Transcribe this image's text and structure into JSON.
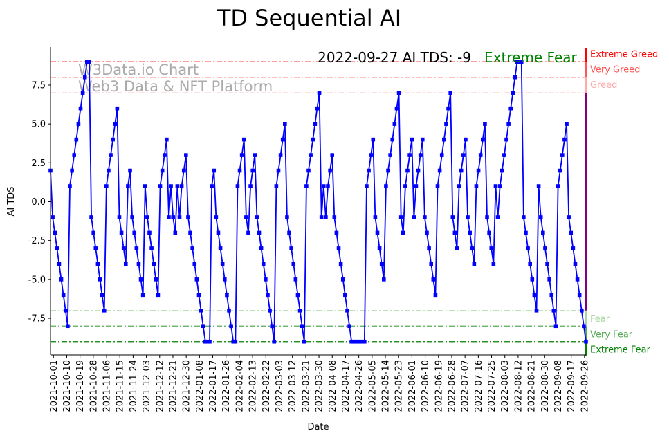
{
  "chart_data": {
    "type": "line",
    "title": "TD Sequential AI",
    "xlabel": "Date",
    "ylabel": "AI TDS",
    "x_start": "2021-09-29",
    "x_end": "2022-09-27",
    "ylim": [
      -9.9,
      9.9
    ],
    "yticks": [
      "-7.5",
      "-5.0",
      "-2.5",
      "0.0",
      "2.5",
      "5.0",
      "7.5"
    ],
    "ytick_values": [
      -7.5,
      -5,
      -2.5,
      0,
      2.5,
      5,
      7.5
    ],
    "xticks": [
      "2021-10-01",
      "2021-10-10",
      "2021-10-19",
      "2021-10-28",
      "2021-11-06",
      "2021-11-15",
      "2021-11-24",
      "2021-12-03",
      "2021-12-12",
      "2021-12-21",
      "2021-12-30",
      "2022-01-08",
      "2022-01-17",
      "2022-01-26",
      "2022-02-04",
      "2022-02-13",
      "2022-02-22",
      "2022-03-03",
      "2022-03-12",
      "2022-03-21",
      "2022-03-30",
      "2022-04-08",
      "2022-04-17",
      "2022-04-26",
      "2022-05-05",
      "2022-05-14",
      "2022-05-23",
      "2022-06-01",
      "2022-06-10",
      "2022-06-19",
      "2022-06-28",
      "2022-07-07",
      "2022-07-16",
      "2022-07-25",
      "2022-08-03",
      "2022-08-12",
      "2022-08-21",
      "2022-08-30",
      "2022-09-08",
      "2022-09-17",
      "2022-09-26"
    ],
    "series": [
      {
        "name": "AI TDS",
        "color": "#0000ff",
        "values": [
          2,
          -1,
          -2,
          -3,
          -4,
          -5,
          -6,
          -7,
          -8,
          1,
          2,
          3,
          4,
          5,
          6,
          7,
          8,
          9,
          9,
          -1,
          -2,
          -3,
          -4,
          -5,
          -6,
          -7,
          1,
          2,
          3,
          4,
          5,
          6,
          -1,
          -2,
          -3,
          -4,
          1,
          2,
          -1,
          -2,
          -3,
          -4,
          -5,
          -6,
          1,
          -1,
          -2,
          -3,
          -4,
          -5,
          -6,
          1,
          2,
          3,
          4,
          -1,
          1,
          -1,
          -2,
          1,
          -1,
          1,
          2,
          3,
          -1,
          -2,
          -3,
          -4,
          -5,
          -6,
          -7,
          -8,
          -9,
          -9,
          -9,
          1,
          2,
          -1,
          -2,
          -3,
          -4,
          -5,
          -6,
          -7,
          -8,
          -9,
          -9,
          1,
          2,
          3,
          4,
          -1,
          -2,
          1,
          2,
          3,
          -1,
          -2,
          -3,
          -4,
          -5,
          -6,
          -7,
          -8,
          -9,
          1,
          2,
          3,
          4,
          5,
          -1,
          -2,
          -3,
          -4,
          -5,
          -6,
          -7,
          -8,
          -9,
          1,
          2,
          3,
          4,
          5,
          6,
          7,
          -1,
          1,
          -1,
          1,
          2,
          3,
          -1,
          -2,
          -3,
          -4,
          -5,
          -6,
          -7,
          -8,
          -9,
          -9,
          -9,
          -9,
          -9,
          -9,
          -9,
          1,
          2,
          3,
          4,
          -1,
          -2,
          -3,
          -4,
          -5,
          1,
          2,
          3,
          4,
          5,
          6,
          7,
          -1,
          -2,
          1,
          2,
          3,
          4,
          -1,
          1,
          2,
          3,
          4,
          -1,
          -2,
          -3,
          -4,
          -5,
          -6,
          1,
          2,
          3,
          4,
          5,
          6,
          7,
          -1,
          -2,
          -3,
          1,
          2,
          3,
          4,
          -1,
          -2,
          -3,
          -4,
          1,
          2,
          3,
          4,
          5,
          -1,
          -2,
          -3,
          -4,
          1,
          -1,
          1,
          2,
          3,
          4,
          5,
          6,
          7,
          8,
          9,
          9,
          9,
          -1,
          -2,
          -3,
          -4,
          -5,
          -6,
          -7,
          1,
          -1,
          -2,
          -3,
          -4,
          -5,
          -6,
          -7,
          -8,
          1,
          2,
          3,
          4,
          5,
          -1,
          -2,
          -3,
          -4,
          -5,
          -6,
          -7,
          -8,
          -9
        ]
      }
    ],
    "levels": [
      {
        "value": 9,
        "label": "Extreme Greed",
        "color": "#ff0000"
      },
      {
        "value": 8,
        "label": "Very Greed",
        "color": "#ff5555"
      },
      {
        "value": 7,
        "label": "Greed",
        "color": "#ffaaaa"
      },
      {
        "value": -7,
        "label": "Fear",
        "color": "#a8d8a0"
      },
      {
        "value": -8,
        "label": "Very Fear",
        "color": "#55aa55"
      },
      {
        "value": -9,
        "label": "Extreme Fear",
        "color": "#008000"
      }
    ],
    "neutral_color": "#800080",
    "annotation": {
      "text": "2022-09-27 AI TDS: -9",
      "status": "Extreme Fear",
      "status_color": "#008000"
    },
    "watermark": {
      "line1": "W3Data.io Chart",
      "line2": "Web3 Data & NFT Platform"
    },
    "grid": false
  }
}
